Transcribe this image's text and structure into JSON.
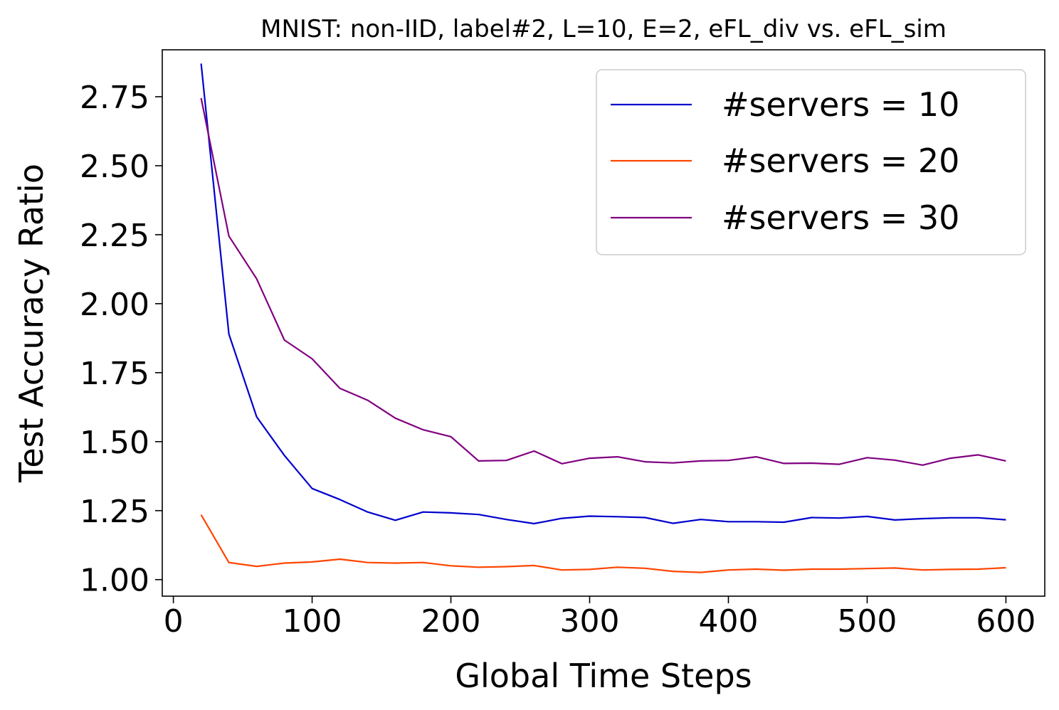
{
  "chart_data": {
    "type": "line",
    "title": "MNIST: non-IID, label#2, L=10, E=2, eFL_div vs. eFL_sim",
    "xlabel": "Global Time Steps",
    "ylabel": "Test Accuracy Ratio",
    "xlim": [
      -8,
      628
    ],
    "ylim": [
      0.94,
      2.92
    ],
    "xticks": [
      0,
      100,
      200,
      300,
      400,
      500,
      600
    ],
    "yticks": [
      1.0,
      1.25,
      1.5,
      1.75,
      2.0,
      2.25,
      2.5,
      2.75
    ],
    "xtick_labels": [
      "0",
      "100",
      "200",
      "300",
      "400",
      "500",
      "600"
    ],
    "ytick_labels": [
      "1.00",
      "1.25",
      "1.50",
      "1.75",
      "2.00",
      "2.25",
      "2.50",
      "2.75"
    ],
    "grid": false,
    "legend_position": "top-right",
    "x": [
      20,
      40,
      60,
      80,
      100,
      120,
      140,
      160,
      180,
      200,
      220,
      240,
      260,
      280,
      300,
      320,
      340,
      360,
      380,
      400,
      420,
      440,
      460,
      480,
      500,
      520,
      540,
      560,
      580,
      600
    ],
    "series": [
      {
        "name": "#servers = 10",
        "color": "#0000cd",
        "values": [
          2.87,
          1.89,
          1.59,
          1.45,
          1.33,
          1.29,
          1.245,
          1.215,
          1.245,
          1.242,
          1.236,
          1.218,
          1.203,
          1.222,
          1.23,
          1.228,
          1.225,
          1.204,
          1.218,
          1.21,
          1.21,
          1.208,
          1.225,
          1.223,
          1.229,
          1.216,
          1.221,
          1.224,
          1.224,
          1.217
        ]
      },
      {
        "name": "#servers = 20",
        "color": "#ff4500",
        "values": [
          1.235,
          1.062,
          1.048,
          1.06,
          1.064,
          1.074,
          1.062,
          1.06,
          1.062,
          1.05,
          1.045,
          1.047,
          1.051,
          1.035,
          1.037,
          1.045,
          1.041,
          1.03,
          1.026,
          1.035,
          1.038,
          1.034,
          1.038,
          1.038,
          1.04,
          1.042,
          1.035,
          1.037,
          1.038,
          1.043
        ]
      },
      {
        "name": "#servers = 30",
        "color": "#800080",
        "values": [
          2.745,
          2.245,
          2.09,
          1.868,
          1.8,
          1.693,
          1.65,
          1.585,
          1.543,
          1.518,
          1.43,
          1.432,
          1.466,
          1.42,
          1.44,
          1.445,
          1.427,
          1.423,
          1.43,
          1.432,
          1.445,
          1.421,
          1.422,
          1.418,
          1.442,
          1.433,
          1.415,
          1.44,
          1.452,
          1.43
        ]
      }
    ]
  }
}
